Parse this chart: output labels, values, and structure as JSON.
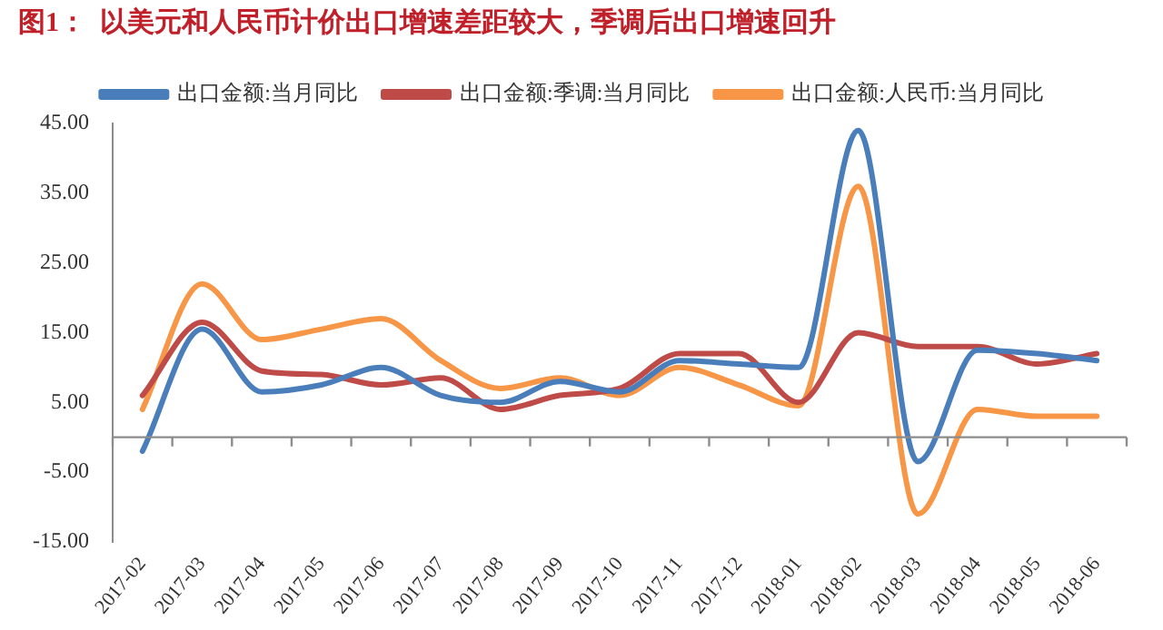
{
  "chart_data": {
    "type": "line",
    "title": "图1：  以美元和人民币计价出口增速差距较大，季调后出口增速回升",
    "categories": [
      "2017-02",
      "2017-03",
      "2017-04",
      "2017-05",
      "2017-06",
      "2017-07",
      "2017-08",
      "2017-09",
      "2017-10",
      "2017-11",
      "2017-12",
      "2018-01",
      "2018-02",
      "2018-03",
      "2018-04",
      "2018-05",
      "2018-06"
    ],
    "series": [
      {
        "name": "出口金额:当月同比",
        "color": "#4a7ebb",
        "values": [
          -2,
          15.5,
          6.5,
          7.5,
          10,
          6,
          5,
          8,
          6.5,
          11,
          10.5,
          10,
          44,
          -3.5,
          12.5,
          12,
          11
        ]
      },
      {
        "name": "出口金额:季调:当月同比",
        "color": "#be4b48",
        "values": [
          6,
          16.5,
          9.5,
          9,
          7.5,
          8.5,
          4,
          6,
          7,
          12,
          12,
          5,
          15,
          13,
          13,
          10.5,
          12
        ]
      },
      {
        "name": "出口金额:人民币:当月同比",
        "color": "#f79646",
        "values": [
          4,
          22,
          14,
          15.5,
          17,
          11,
          7,
          8.5,
          6,
          10,
          7.5,
          4.5,
          36,
          -11,
          4,
          3,
          3
        ]
      }
    ],
    "ylim": [
      -15,
      45
    ],
    "yticks": [
      {
        "value": -15,
        "label": "-15.00"
      },
      {
        "value": -5,
        "label": "-5.00"
      },
      {
        "value": 5,
        "label": "5.00"
      },
      {
        "value": 15,
        "label": "15.00"
      },
      {
        "value": 25,
        "label": "25.00"
      },
      {
        "value": 35,
        "label": "35.00"
      },
      {
        "value": 45,
        "label": "45.00"
      }
    ],
    "grid": false,
    "legend": "top",
    "marker": "none",
    "line_style": "solid"
  }
}
